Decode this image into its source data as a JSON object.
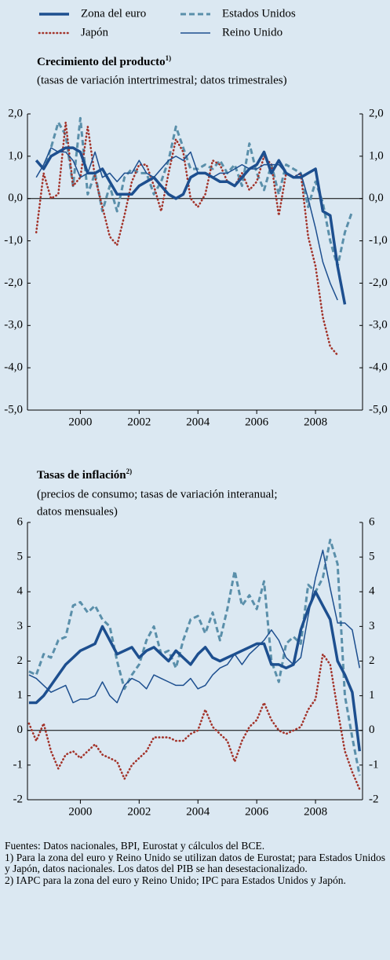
{
  "chart_data": [
    {
      "type": "line",
      "title": "Crecimiento del producto",
      "title_note": "1)",
      "subtitle": "(tasas de variación intertrimestral; datos trimestrales)",
      "x": [
        1998.5,
        1998.75,
        1999,
        1999.25,
        1999.5,
        1999.75,
        2000,
        2000.25,
        2000.5,
        2000.75,
        2001,
        2001.25,
        2001.5,
        2001.75,
        2002,
        2002.25,
        2002.5,
        2002.75,
        2003,
        2003.25,
        2003.5,
        2003.75,
        2004,
        2004.25,
        2004.5,
        2004.75,
        2005,
        2005.25,
        2005.5,
        2005.75,
        2006,
        2006.25,
        2006.5,
        2006.75,
        2007,
        2007.25,
        2007.5,
        2007.75,
        2008,
        2008.25,
        2008.5,
        2008.75,
        2009,
        2009.25
      ],
      "xlim": [
        1998.2,
        2009.6
      ],
      "xticks": [
        2000,
        2002,
        2004,
        2006,
        2008
      ],
      "ylim": [
        -5,
        2
      ],
      "yticks": [
        {
          "value": 2,
          "label": "2,0"
        },
        {
          "value": 1,
          "label": "1,0"
        },
        {
          "value": 0,
          "label": "0,0"
        },
        {
          "value": -1,
          "label": "-1,0"
        },
        {
          "value": -2,
          "label": "-2,0"
        },
        {
          "value": -3,
          "label": "-3,0"
        },
        {
          "value": -4,
          "label": "-4,0"
        },
        {
          "value": -5,
          "label": "-5,0"
        }
      ],
      "series": [
        {
          "name": "Zona del euro",
          "color": "#1d4f8f",
          "style": "solid",
          "width": 3.5,
          "values": [
            0.9,
            0.7,
            1.0,
            1.1,
            1.2,
            1.2,
            1.1,
            0.6,
            0.6,
            0.7,
            0.4,
            0.1,
            0.1,
            0.1,
            0.3,
            0.4,
            0.5,
            0.3,
            0.1,
            0.0,
            0.1,
            0.5,
            0.6,
            0.6,
            0.5,
            0.4,
            0.4,
            0.3,
            0.5,
            0.7,
            0.8,
            1.1,
            0.6,
            0.9,
            0.6,
            0.5,
            0.5,
            0.6,
            0.7,
            -0.3,
            -0.4,
            -1.6,
            -2.5,
            null
          ]
        },
        {
          "name": "Estados Unidos",
          "color": "#5a8faa",
          "style": "dashed",
          "width": 3,
          "values": [
            0.9,
            0.7,
            1.2,
            1.8,
            1.5,
            0.3,
            1.9,
            0.1,
            0.6,
            -0.3,
            0.3,
            -0.3,
            0.5,
            0.7,
            0.6,
            0.6,
            0.1,
            0.4,
            0.9,
            1.7,
            1.2,
            0.7,
            0.7,
            0.8,
            0.7,
            0.9,
            0.6,
            0.8,
            0.3,
            1.3,
            0.6,
            0.2,
            0.8,
            0.1,
            0.8,
            0.7,
            0.6,
            -0.2,
            0.4,
            -0.1,
            -1.0,
            -1.6,
            -0.8,
            -0.3
          ]
        },
        {
          "name": "Japón",
          "color": "#a3342b",
          "style": "dotted",
          "width": 2.6,
          "values": [
            -0.8,
            0.6,
            0.0,
            0.1,
            1.8,
            0.3,
            0.5,
            1.7,
            0.5,
            -0.2,
            -0.9,
            -1.1,
            -0.4,
            0.4,
            0.8,
            0.8,
            0.3,
            -0.3,
            0.6,
            1.4,
            1.1,
            0.0,
            -0.2,
            0.1,
            0.9,
            0.8,
            0.4,
            0.3,
            0.6,
            0.2,
            0.4,
            1.0,
            0.8,
            -0.4,
            0.6,
            0.5,
            0.6,
            -0.9,
            -1.6,
            -2.8,
            -3.5,
            -3.7,
            null,
            null
          ]
        },
        {
          "name": "Reino Unido",
          "color": "#1d4f8f",
          "style": "solid",
          "width": 1.5,
          "values": [
            0.5,
            0.8,
            1.2,
            1.1,
            1.1,
            0.9,
            0.5,
            0.6,
            1.1,
            0.5,
            0.6,
            0.4,
            0.6,
            0.6,
            0.9,
            0.6,
            0.5,
            0.7,
            0.9,
            1.0,
            0.9,
            1.1,
            0.6,
            0.6,
            0.5,
            0.6,
            0.6,
            0.7,
            0.8,
            0.7,
            0.7,
            0.8,
            0.8,
            0.8,
            0.6,
            0.5,
            0.6,
            0.0,
            -0.7,
            -1.5,
            -2.0,
            -2.4,
            null,
            null
          ]
        }
      ]
    },
    {
      "type": "line",
      "title": "Tasas de inflación",
      "title_note": "2)",
      "subtitle": [
        "(precios de consumo; tasas de variación interanual;",
        "datos mensuales)"
      ],
      "x": [
        1998.25,
        1998.5,
        1998.75,
        1999,
        1999.25,
        1999.5,
        1999.75,
        2000,
        2000.25,
        2000.5,
        2000.75,
        2001,
        2001.25,
        2001.5,
        2001.75,
        2002,
        2002.25,
        2002.5,
        2002.75,
        2003,
        2003.25,
        2003.5,
        2003.75,
        2004,
        2004.25,
        2004.5,
        2004.75,
        2005,
        2005.25,
        2005.5,
        2005.75,
        2006,
        2006.25,
        2006.5,
        2006.75,
        2007,
        2007.25,
        2007.5,
        2007.75,
        2008,
        2008.25,
        2008.5,
        2008.75,
        2009,
        2009.25,
        2009.5
      ],
      "xlim": [
        1998.2,
        2009.6
      ],
      "xticks": [
        2000,
        2002,
        2004,
        2006,
        2008
      ],
      "ylim": [
        -2,
        6
      ],
      "yticks": [
        6,
        5,
        4,
        3,
        2,
        1,
        0,
        -1,
        -2
      ],
      "series": [
        {
          "color": "#1d4f8f",
          "style": "solid",
          "width": 3.5,
          "values": [
            0.8,
            0.8,
            1.0,
            1.3,
            1.6,
            1.9,
            2.1,
            2.3,
            2.4,
            2.5,
            3.0,
            2.6,
            2.2,
            2.3,
            2.4,
            2.1,
            2.3,
            2.4,
            2.2,
            2.0,
            2.3,
            2.1,
            1.9,
            2.2,
            2.4,
            2.1,
            2.0,
            2.1,
            2.2,
            2.3,
            2.4,
            2.5,
            2.5,
            1.9,
            1.9,
            1.8,
            1.9,
            2.9,
            3.5,
            4.0,
            3.6,
            3.2,
            2.0,
            1.6,
            1.1,
            -0.6
          ]
        },
        {
          "color": "#5a8faa",
          "style": "dashed",
          "width": 3,
          "values": [
            1.7,
            1.6,
            2.2,
            2.1,
            2.6,
            2.7,
            3.6,
            3.7,
            3.4,
            3.6,
            3.2,
            3.0,
            2.0,
            1.2,
            1.6,
            1.9,
            2.6,
            3.0,
            2.2,
            2.3,
            1.8,
            2.6,
            3.2,
            3.3,
            2.8,
            3.4,
            2.6,
            3.5,
            4.6,
            3.6,
            3.9,
            3.5,
            4.3,
            2.0,
            1.4,
            2.5,
            2.7,
            2.5,
            4.2,
            4.0,
            4.4,
            5.5,
            4.8,
            1.0,
            -0.2,
            -1.3
          ]
        },
        {
          "color": "#a3342b",
          "style": "dotted",
          "width": 2.6,
          "values": [
            0.2,
            -0.3,
            0.2,
            -0.6,
            -1.1,
            -0.7,
            -0.6,
            -0.8,
            -0.6,
            -0.4,
            -0.7,
            -0.8,
            -0.9,
            -1.4,
            -1.0,
            -0.8,
            -0.6,
            -0.2,
            -0.2,
            -0.2,
            -0.3,
            -0.3,
            -0.1,
            0.0,
            0.6,
            0.1,
            -0.1,
            -0.3,
            -0.9,
            -0.3,
            0.1,
            0.3,
            0.8,
            0.3,
            0.0,
            -0.1,
            0.0,
            0.1,
            0.6,
            0.9,
            2.2,
            1.9,
            0.6,
            -0.6,
            -1.2,
            -1.7
          ]
        },
        {
          "color": "#1d4f8f",
          "style": "solid",
          "width": 1.5,
          "values": [
            1.6,
            1.5,
            1.3,
            1.1,
            1.2,
            1.3,
            0.8,
            0.9,
            0.9,
            1.0,
            1.4,
            1.0,
            0.8,
            1.3,
            1.5,
            1.4,
            1.2,
            1.6,
            1.5,
            1.4,
            1.3,
            1.3,
            1.5,
            1.2,
            1.3,
            1.6,
            1.8,
            1.9,
            2.2,
            1.9,
            2.2,
            2.4,
            2.6,
            2.9,
            2.6,
            2.1,
            1.9,
            2.1,
            3.3,
            4.4,
            5.2,
            4.1,
            3.1,
            3.1,
            2.9,
            1.8
          ]
        }
      ]
    }
  ],
  "footnotes": [
    "Fuentes: Datos nacionales, BPI, Eurostat y cálculos del BCE.",
    "1) Para la zona del euro y Reino Unido se utilizan datos de Eurostat; para Estados Unidos y Japón, datos nacionales. Los datos del PIB se han desestacionalizado.",
    "2) IAPC para la zona del euro y Reino Unido; IPC para Estados Unidos y Japón."
  ]
}
